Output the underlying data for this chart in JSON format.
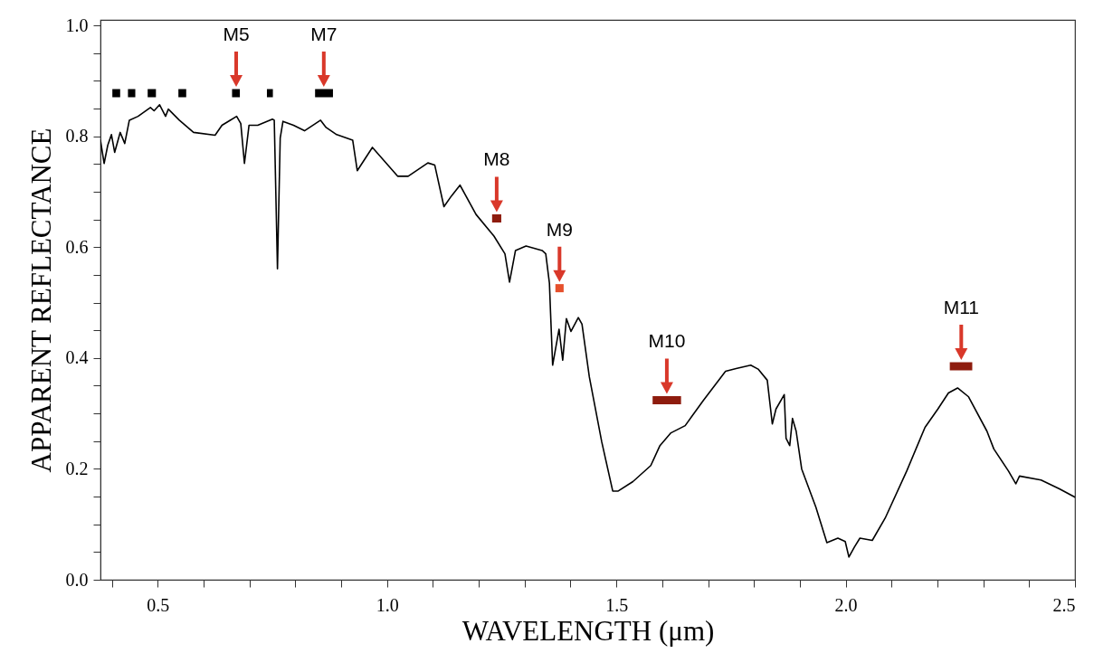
{
  "chart_data": {
    "type": "line",
    "xlabel": "WAVELENGTH (μm)",
    "ylabel": "APPARENT REFLECTANCE",
    "xlim": [
      0.375,
      2.5
    ],
    "ylim": [
      0,
      1.01
    ],
    "xticks": [
      {
        "value": 0.4,
        "label": null
      },
      0.5,
      {
        "value": 0.6,
        "label": null
      },
      {
        "value": 0.7,
        "label": null
      },
      {
        "value": 0.8,
        "label": null
      },
      {
        "value": 0.9,
        "label": null
      },
      {
        "value": 1,
        "label": "1.0"
      },
      {
        "value": 1.1,
        "label": null
      },
      {
        "value": 1.2,
        "label": null
      },
      {
        "value": 1.3,
        "label": null
      },
      {
        "value": 1.4,
        "label": null
      },
      1.5,
      {
        "value": 1.6,
        "label": null
      },
      {
        "value": 1.7,
        "label": null
      },
      {
        "value": 1.8,
        "label": null
      },
      {
        "value": 1.9,
        "label": null
      },
      {
        "value": 2,
        "label": "2.0"
      },
      {
        "value": 2.1,
        "label": null
      },
      {
        "value": 2.2,
        "label": null
      },
      {
        "value": 2.3,
        "label": null
      },
      {
        "value": 2.4,
        "label": null
      },
      2.5
    ],
    "yticks": [
      {
        "value": 0,
        "label": "0.0"
      },
      {
        "value": 0.05,
        "label": null
      },
      {
        "value": 0.1,
        "label": null
      },
      {
        "value": 0.15,
        "label": null
      },
      0.2,
      {
        "value": 0.25,
        "label": null
      },
      {
        "value": 0.3,
        "label": null
      },
      {
        "value": 0.35,
        "label": null
      },
      0.4,
      {
        "value": 0.45,
        "label": null
      },
      {
        "value": 0.5,
        "label": null
      },
      {
        "value": 0.55,
        "label": null
      },
      0.6,
      {
        "value": 0.65,
        "label": null
      },
      {
        "value": 0.7,
        "label": null
      },
      {
        "value": 0.75,
        "label": null
      },
      0.8,
      {
        "value": 0.85,
        "label": null
      },
      {
        "value": 0.9,
        "label": null
      },
      {
        "value": 0.95,
        "label": null
      },
      {
        "value": 1,
        "label": "1.0"
      }
    ],
    "series": [
      {
        "color": "#000000",
        "x": [
          0.375,
          0.383,
          0.391,
          0.399,
          0.406,
          0.418,
          0.428,
          0.438,
          0.457,
          0.484,
          0.492,
          0.504,
          0.517,
          0.523,
          0.547,
          0.578,
          0.625,
          0.64,
          0.672,
          0.681,
          0.689,
          0.699,
          0.718,
          0.75,
          0.754,
          0.761,
          0.767,
          0.773,
          0.796,
          0.82,
          0.855,
          0.867,
          0.89,
          0.925,
          0.935,
          0.968,
          1.023,
          1.046,
          1.089,
          1.104,
          1.124,
          1.14,
          1.159,
          1.194,
          1.233,
          1.257,
          1.267,
          1.28,
          1.303,
          1.338,
          1.346,
          1.354,
          1.356,
          1.361,
          1.375,
          1.383,
          1.391,
          1.401,
          1.417,
          1.425,
          1.441,
          1.468,
          1.492,
          1.504,
          1.536,
          1.575,
          1.595,
          1.619,
          1.65,
          1.69,
          1.738,
          1.761,
          1.793,
          1.809,
          1.829,
          1.84,
          1.848,
          1.866,
          1.87,
          1.878,
          1.884,
          1.892,
          1.904,
          1.935,
          1.959,
          1.983,
          1.999,
          2.007,
          2.019,
          2.031,
          2.058,
          2.086,
          2.133,
          2.173,
          2.201,
          2.224,
          2.244,
          2.268,
          2.308,
          2.323,
          2.355,
          2.371,
          2.379,
          2.426,
          2.466,
          2.5
        ],
        "values": [
          0.793,
          0.751,
          0.784,
          0.803,
          0.771,
          0.807,
          0.787,
          0.829,
          0.836,
          0.852,
          0.846,
          0.857,
          0.836,
          0.849,
          0.829,
          0.807,
          0.802,
          0.82,
          0.836,
          0.823,
          0.751,
          0.82,
          0.82,
          0.831,
          0.829,
          0.561,
          0.797,
          0.827,
          0.82,
          0.81,
          0.829,
          0.816,
          0.803,
          0.793,
          0.738,
          0.78,
          0.728,
          0.728,
          0.752,
          0.748,
          0.673,
          0.692,
          0.712,
          0.659,
          0.62,
          0.588,
          0.537,
          0.594,
          0.602,
          0.594,
          0.588,
          0.535,
          0.491,
          0.387,
          0.452,
          0.396,
          0.471,
          0.448,
          0.473,
          0.461,
          0.366,
          0.249,
          0.16,
          0.16,
          0.177,
          0.206,
          0.242,
          0.265,
          0.278,
          0.324,
          0.376,
          0.381,
          0.387,
          0.38,
          0.36,
          0.281,
          0.308,
          0.334,
          0.255,
          0.242,
          0.291,
          0.268,
          0.2,
          0.131,
          0.067,
          0.075,
          0.069,
          0.041,
          0.059,
          0.075,
          0.071,
          0.111,
          0.196,
          0.275,
          0.308,
          0.337,
          0.346,
          0.33,
          0.268,
          0.236,
          0.196,
          0.173,
          0.187,
          0.18,
          0.164,
          0.149
        ]
      },
      {
        "color": "#000000",
        "x": [
          0.401,
          0.418,
          0.426,
          0.435,
          0.451,
          0.465,
          0.478,
          0.496,
          0.52,
          0.545,
          0.562,
          0.61,
          0.662,
          0.679,
          0.71,
          0.738,
          0.751,
          0.8,
          0.843,
          0.882
        ],
        "values": [
          0.878,
          0.878,
          null,
          0.878,
          0.878,
          null,
          0.878,
          0.878,
          null,
          0.878,
          0.878,
          null,
          0.878,
          0.878,
          null,
          0.878,
          0.878,
          null,
          0.878,
          0.878
        ]
      },
      {
        "color": "#8e1c0e",
        "x": [
          1.229,
          1.249,
          1.4,
          1.579,
          1.641,
          1.9,
          2.227,
          2.276
        ],
        "values": [
          0.652,
          0.652,
          null,
          0.324,
          0.324,
          null,
          0.385,
          0.385
        ]
      },
      {
        "color": "#e6502c",
        "x": [
          1.367,
          1.385
        ],
        "values": [
          0.526,
          0.526
        ]
      }
    ],
    "annotations": [
      {
        "text": "M5",
        "x": 0.671,
        "y": 0.878
      },
      {
        "text": "M7",
        "x": 0.862,
        "y": 0.878
      },
      {
        "text": "M8",
        "x": 1.239,
        "y": 0.652
      },
      {
        "text": "M9",
        "x": 1.376,
        "y": 0.526
      },
      {
        "text": "M10",
        "x": 1.61,
        "y": 0.324
      },
      {
        "text": "M11",
        "x": 2.252,
        "y": 0.385
      }
    ]
  }
}
